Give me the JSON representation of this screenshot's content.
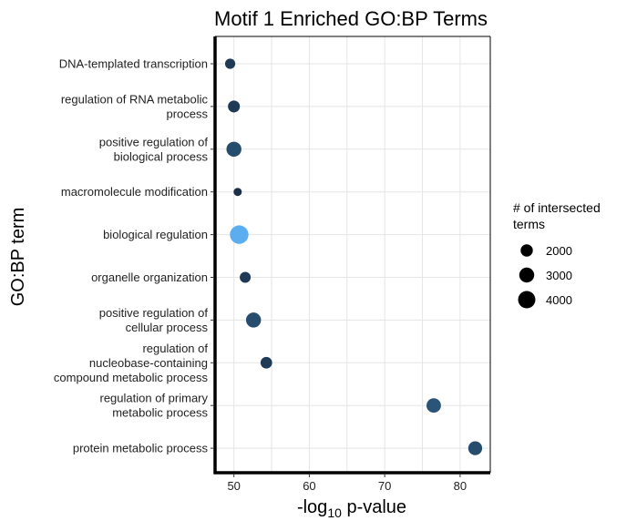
{
  "chart_data": {
    "type": "scatter",
    "title": "Motif 1 Enriched GO:BP Terms",
    "xlabel_main": "-log",
    "xlabel_sub": "10",
    "xlabel_rest": " p-value",
    "ylabel": "GO:BP term",
    "xlim": [
      47.5,
      84
    ],
    "x_ticks": [
      50,
      60,
      70,
      80
    ],
    "categories": [
      "DNA-templated transcription",
      "regulation of RNA metabolic\nprocess",
      "positive regulation of\nbiological process",
      "macromolecule modification",
      "biological regulation",
      "organelle organization",
      "positive regulation of\ncellular process",
      "regulation of\nnucleobase-containing\ncompound metabolic process",
      "regulation of primary\nmetabolic process",
      "protein metabolic process"
    ],
    "points": [
      {
        "term": "DNA-templated transcription",
        "x": 49.5,
        "size": 1400,
        "color": "#1f3a56"
      },
      {
        "term": "regulation of RNA metabolic process",
        "x": 50.0,
        "size": 1900,
        "color": "#1f3a56"
      },
      {
        "term": "positive regulation of biological process",
        "x": 50.0,
        "size": 3000,
        "color": "#264d6e"
      },
      {
        "term": "macromolecule modification",
        "x": 50.5,
        "size": 900,
        "color": "#1a3049"
      },
      {
        "term": "biological regulation",
        "x": 50.7,
        "size": 4600,
        "color": "#5aaef0"
      },
      {
        "term": "organelle organization",
        "x": 51.5,
        "size": 1600,
        "color": "#1f3a56"
      },
      {
        "term": "positive regulation of cellular process",
        "x": 52.6,
        "size": 3000,
        "color": "#264d6e"
      },
      {
        "term": "regulation of nucleobase-containing compound metabolic process",
        "x": 54.3,
        "size": 1800,
        "color": "#1f3a56"
      },
      {
        "term": "regulation of primary metabolic process",
        "x": 76.5,
        "size": 2800,
        "color": "#2a5478"
      },
      {
        "term": "protein metabolic process",
        "x": 82.0,
        "size": 2600,
        "color": "#264d6e"
      }
    ],
    "legend": {
      "title_line1": "# of intersected",
      "title_line2": " terms",
      "placement": "right",
      "entries": [
        {
          "label": "2000",
          "size": 2000
        },
        {
          "label": "3000",
          "size": 3000
        },
        {
          "label": "4000",
          "size": 4000
        }
      ]
    },
    "grid": true
  }
}
